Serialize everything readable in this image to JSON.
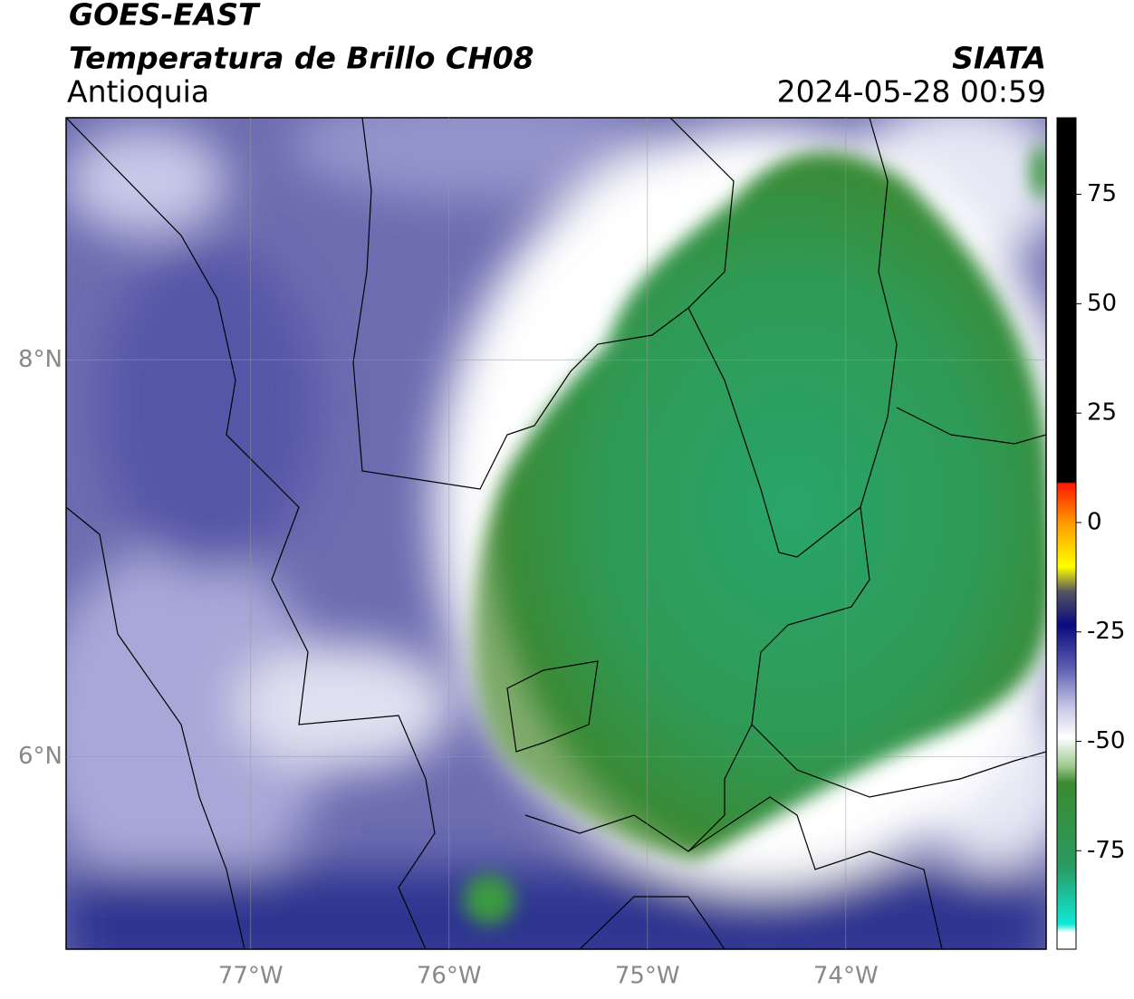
{
  "header": {
    "line1": "GOES-EAST",
    "line2": "Temperatura de Brillo CH08",
    "region": "Antioquia",
    "source": "SIATA",
    "timestamp": "2024-05-28 00:59"
  },
  "map": {
    "lon_range": [
      -77.93,
      -72.99
    ],
    "lat_range": [
      5.03,
      9.22
    ],
    "lon_ticks": [
      {
        "value": -77,
        "label": "77°W"
      },
      {
        "value": -76,
        "label": "76°W"
      },
      {
        "value": -75,
        "label": "75°W"
      },
      {
        "value": -74,
        "label": "74°W"
      }
    ],
    "lat_ticks": [
      {
        "value": 8,
        "label": "8°N"
      },
      {
        "value": 6,
        "label": "6°N"
      }
    ]
  },
  "colorbar": {
    "range": [
      -97.5,
      92.5
    ],
    "ticks": [
      75,
      50,
      25,
      0,
      -25,
      -50,
      -75
    ]
  }
}
